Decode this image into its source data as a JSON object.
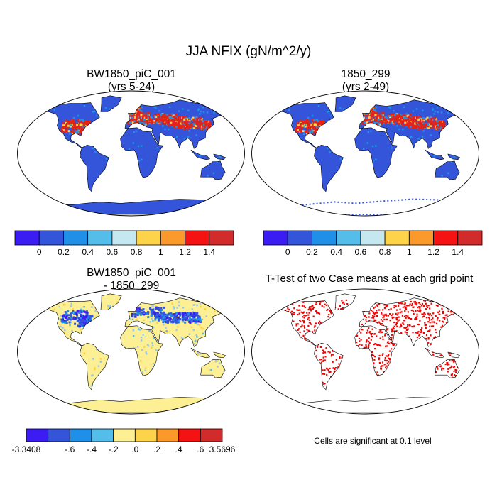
{
  "figure": {
    "title": "JJA NFIX (gN/m^2/y)"
  },
  "panels": {
    "p1": {
      "title_line1": "BW1850_piC_001",
      "title_line2": "(yrs 5-24)"
    },
    "p2": {
      "title_line1": "1850_299",
      "title_line2": "(yrs 2-49)"
    },
    "p3": {
      "title_line1": "BW1850_piC_001",
      "title_line2": "- 1850_299"
    },
    "p4": {
      "title_line1": "T-Test of two Case means at each grid point"
    }
  },
  "colorbars": {
    "top": {
      "colors": [
        "#3b1cf2",
        "#3455d9",
        "#1f8fe8",
        "#55bde9",
        "#c5e7ef",
        "#fdd34a",
        "#fb9a2b",
        "#f41212",
        "#d22b2b"
      ],
      "labels": [
        "0",
        "0.2",
        "0.4",
        "0.6",
        "0.8",
        "1",
        "1.2",
        "1.4"
      ]
    },
    "diff": {
      "colors": [
        "#3b1cf2",
        "#3455d9",
        "#1f8fe8",
        "#55bde9",
        "#fdef93",
        "#fdd34a",
        "#fb9a2b",
        "#f41212",
        "#d22b2b"
      ],
      "labels": [
        "-3.3408",
        "-.6",
        "-.4",
        "-.2",
        ".0",
        ".2",
        ".4",
        ".6",
        "3.5696"
      ]
    }
  },
  "significance_note": "Cells are significant at 0.1 level",
  "map_colors": {
    "ocean": "#ffffff",
    "land_base_abs": "#3455d9",
    "land_high_abs": "#e2231a",
    "land_mid_abs": "#1f8fe8",
    "land_base_diff": "#fdef93",
    "land_neg_diff": "#9dc7e6",
    "sig_red": "#f20000"
  }
}
